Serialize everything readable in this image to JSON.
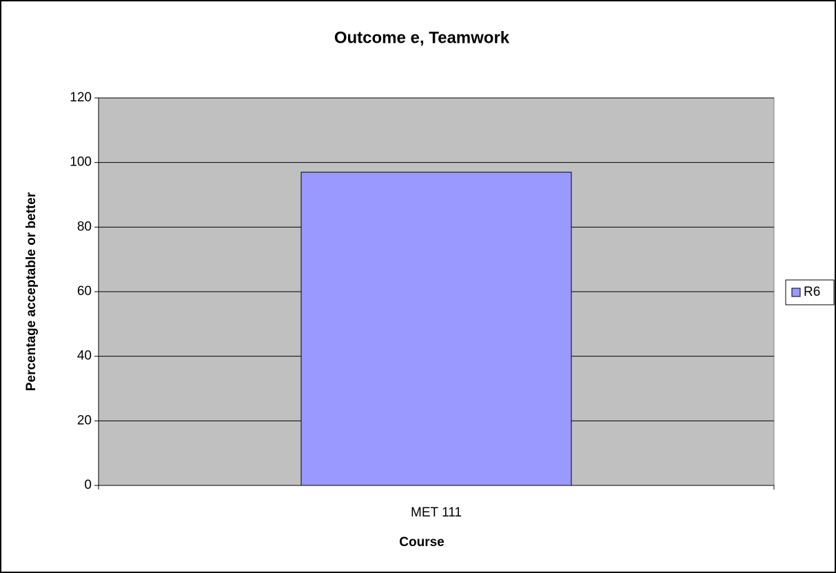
{
  "chart_data": {
    "type": "bar",
    "title": "Outcome e, Teamwork",
    "x_label": "Course",
    "y_label": "Percentage acceptable or better",
    "categories": [
      "MET 111"
    ],
    "series": [
      {
        "name": "R6",
        "color": "#9999ff",
        "values": [
          97
        ]
      }
    ],
    "ylim": [
      0,
      120
    ],
    "yticks": [
      0,
      20,
      40,
      60,
      80,
      100,
      120
    ],
    "grid": true,
    "legend": "right"
  }
}
